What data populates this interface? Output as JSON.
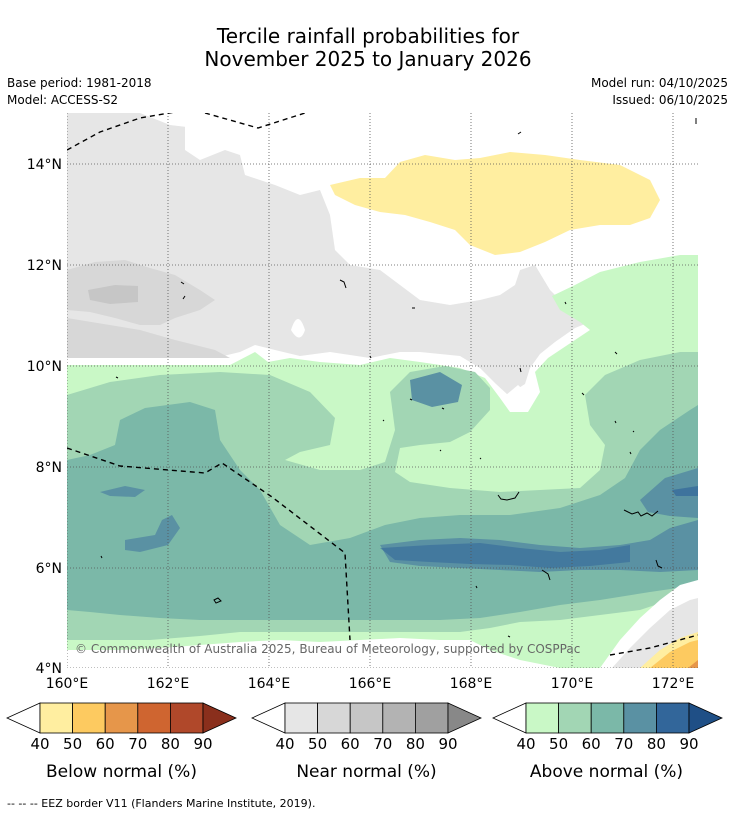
{
  "title": {
    "line1": "Tercile rainfall probabilities for",
    "line2": "November 2025 to January 2026"
  },
  "info": {
    "base_period": "Base period: 1981-2018",
    "model": "Model: ACCESS-S2",
    "model_run": "Model run: 04/10/2025",
    "issued": "Issued: 06/10/2025"
  },
  "map": {
    "lat_labels": [
      "14°N",
      "12°N",
      "10°N",
      "8°N",
      "6°N",
      "4°N"
    ],
    "lon_labels": [
      "160°E",
      "162°E",
      "164°E",
      "166°E",
      "168°E",
      "170°E",
      "172°E"
    ],
    "copyright": "© Commonwealth of Australia 2025, Bureau of Meteorology, supported by COSPPac"
  },
  "colorbars": [
    {
      "title": "Below normal (%)",
      "labels": [
        "40",
        "50",
        "60",
        "70",
        "80",
        "90"
      ],
      "colors": [
        "#ffeea0",
        "#fdca60",
        "#e6964a",
        "#cf6530",
        "#b0482a",
        "#8a2f1c"
      ]
    },
    {
      "title": "Near normal (%)",
      "labels": [
        "40",
        "50",
        "60",
        "70",
        "80",
        "90"
      ],
      "colors": [
        "#e6e6e6",
        "#d7d7d7",
        "#c6c6c6",
        "#b3b3b3",
        "#a0a0a0",
        "#888888"
      ]
    },
    {
      "title": "Above normal (%)",
      "labels": [
        "40",
        "50",
        "60",
        "70",
        "80",
        "90"
      ],
      "colors": [
        "#c9f8c6",
        "#a2d6b4",
        "#7bb8a8",
        "#5a91a3",
        "#32669a",
        "#1f4f86"
      ]
    }
  ],
  "footnote": "--  --  -- EEZ border V11 (Flanders Marine Institute, 2019)."
}
